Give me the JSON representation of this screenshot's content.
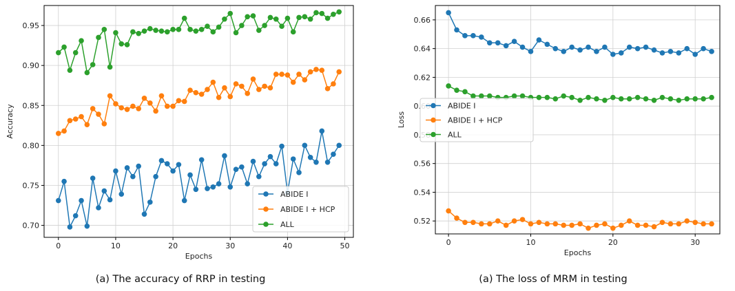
{
  "captions": {
    "left": "(a) The accuracy of RRP in testing",
    "right": "(a) The loss of MRM in testing"
  },
  "colors": {
    "blue": "#1f77b4",
    "orange": "#ff7f0e",
    "green": "#2ca02c",
    "grid": "#d0d0d0"
  },
  "chart_data": [
    {
      "type": "line",
      "title": "",
      "xlabel": "Epochs",
      "ylabel": "Accuracy",
      "xlim": [
        -2.5,
        51.5
      ],
      "ylim": [
        0.685,
        0.975
      ],
      "xticks": [
        0,
        10,
        20,
        30,
        40,
        50
      ],
      "yticks": [
        0.7,
        0.75,
        0.8,
        0.85,
        0.9,
        0.95
      ],
      "ytick_labels": [
        "0.70",
        "0.75",
        "0.80",
        "0.85",
        "0.90",
        "0.95"
      ],
      "grid": true,
      "legend_position": "lower right",
      "series": [
        {
          "name": "ABIDE I",
          "color": "#1f77b4",
          "values": [
            0.731,
            0.755,
            0.698,
            0.712,
            0.731,
            0.699,
            0.759,
            0.722,
            0.743,
            0.732,
            0.768,
            0.739,
            0.772,
            0.761,
            0.774,
            0.714,
            0.729,
            0.761,
            0.781,
            0.777,
            0.768,
            0.776,
            0.731,
            0.763,
            0.745,
            0.782,
            0.746,
            0.748,
            0.752,
            0.787,
            0.748,
            0.77,
            0.773,
            0.752,
            0.78,
            0.761,
            0.777,
            0.786,
            0.777,
            0.799,
            0.741,
            0.783,
            0.766,
            0.8,
            0.785,
            0.779,
            0.818,
            0.779,
            0.789,
            0.8
          ]
        },
        {
          "name": "ABIDE I + HCP",
          "color": "#ff7f0e",
          "values": [
            0.815,
            0.818,
            0.831,
            0.833,
            0.836,
            0.826,
            0.846,
            0.839,
            0.827,
            0.862,
            0.852,
            0.847,
            0.845,
            0.849,
            0.846,
            0.859,
            0.853,
            0.843,
            0.862,
            0.849,
            0.849,
            0.856,
            0.855,
            0.869,
            0.866,
            0.864,
            0.87,
            0.879,
            0.86,
            0.872,
            0.861,
            0.877,
            0.874,
            0.865,
            0.883,
            0.87,
            0.874,
            0.872,
            0.889,
            0.889,
            0.888,
            0.879,
            0.889,
            0.882,
            0.892,
            0.895,
            0.894,
            0.871,
            0.877,
            0.892
          ]
        },
        {
          "name": "ALL",
          "color": "#2ca02c",
          "values": [
            0.916,
            0.923,
            0.894,
            0.916,
            0.931,
            0.891,
            0.901,
            0.935,
            0.945,
            0.898,
            0.941,
            0.927,
            0.926,
            0.942,
            0.94,
            0.943,
            0.946,
            0.944,
            0.943,
            0.942,
            0.945,
            0.945,
            0.959,
            0.945,
            0.943,
            0.945,
            0.949,
            0.942,
            0.948,
            0.958,
            0.965,
            0.941,
            0.95,
            0.961,
            0.962,
            0.944,
            0.95,
            0.96,
            0.958,
            0.949,
            0.959,
            0.942,
            0.96,
            0.961,
            0.958,
            0.966,
            0.965,
            0.959,
            0.964,
            0.967
          ]
        }
      ]
    },
    {
      "type": "line",
      "title": "",
      "xlabel": "Epochs",
      "ylabel": "Loss",
      "xlim": [
        -1.6,
        33.0
      ],
      "ylim": [
        0.511,
        0.67
      ],
      "xticks": [
        0,
        10,
        20,
        30
      ],
      "yticks": [
        0.52,
        0.54,
        0.56,
        0.58,
        0.6,
        0.62,
        0.64,
        0.66
      ],
      "ytick_labels": [
        "0.52",
        "0.54",
        "0.56",
        "0.58",
        "0.60",
        "0.62",
        "0.64",
        "0.66"
      ],
      "grid": true,
      "legend_position": "upper left",
      "series": [
        {
          "name": "ABIDE I",
          "color": "#1f77b4",
          "values": [
            0.665,
            0.653,
            0.649,
            0.649,
            0.648,
            0.644,
            0.644,
            0.642,
            0.645,
            0.641,
            0.638,
            0.646,
            0.643,
            0.64,
            0.638,
            0.641,
            0.639,
            0.641,
            0.638,
            0.641,
            0.636,
            0.637,
            0.641,
            0.64,
            0.641,
            0.639,
            0.637,
            0.638,
            0.637,
            0.64,
            0.636,
            0.64,
            0.638
          ]
        },
        {
          "name": "ABIDE I + HCP",
          "color": "#ff7f0e",
          "values": [
            0.527,
            0.522,
            0.519,
            0.519,
            0.518,
            0.518,
            0.52,
            0.517,
            0.52,
            0.521,
            0.518,
            0.519,
            0.518,
            0.518,
            0.517,
            0.517,
            0.518,
            0.515,
            0.517,
            0.518,
            0.515,
            0.517,
            0.52,
            0.517,
            0.517,
            0.516,
            0.519,
            0.518,
            0.518,
            0.52,
            0.519,
            0.518,
            0.518
          ]
        },
        {
          "name": "ALL",
          "color": "#2ca02c",
          "values": [
            0.614,
            0.611,
            0.61,
            0.607,
            0.607,
            0.607,
            0.606,
            0.606,
            0.607,
            0.607,
            0.606,
            0.606,
            0.606,
            0.605,
            0.607,
            0.606,
            0.604,
            0.606,
            0.605,
            0.604,
            0.606,
            0.605,
            0.605,
            0.606,
            0.605,
            0.604,
            0.606,
            0.605,
            0.604,
            0.605,
            0.605,
            0.605,
            0.606
          ]
        }
      ]
    }
  ]
}
